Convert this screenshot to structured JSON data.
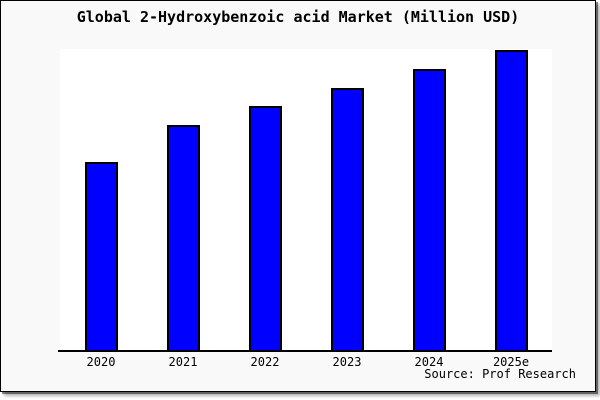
{
  "chart": {
    "title": "Global 2-Hydroxybenzoic acid Market (Million USD)",
    "source": "Source: Prof Research"
  },
  "chart_data": {
    "type": "bar",
    "title": "Global 2-Hydroxybenzoic acid Market (Million USD)",
    "categories": [
      "2020",
      "2021",
      "2022",
      "2023",
      "2024",
      "2025e"
    ],
    "values_pct_of_plot_height": [
      62.6,
      74.8,
      81.1,
      87.1,
      93.4,
      99.7
    ],
    "unit": "Million USD",
    "y_axis_labeled": false,
    "grid": false,
    "legend": false,
    "bar_fill": "#0000ff",
    "bar_border": "#000000",
    "frame_background": "#f9f9f9",
    "plot_background": "#ffffff",
    "source": "Source: Prof Research"
  }
}
